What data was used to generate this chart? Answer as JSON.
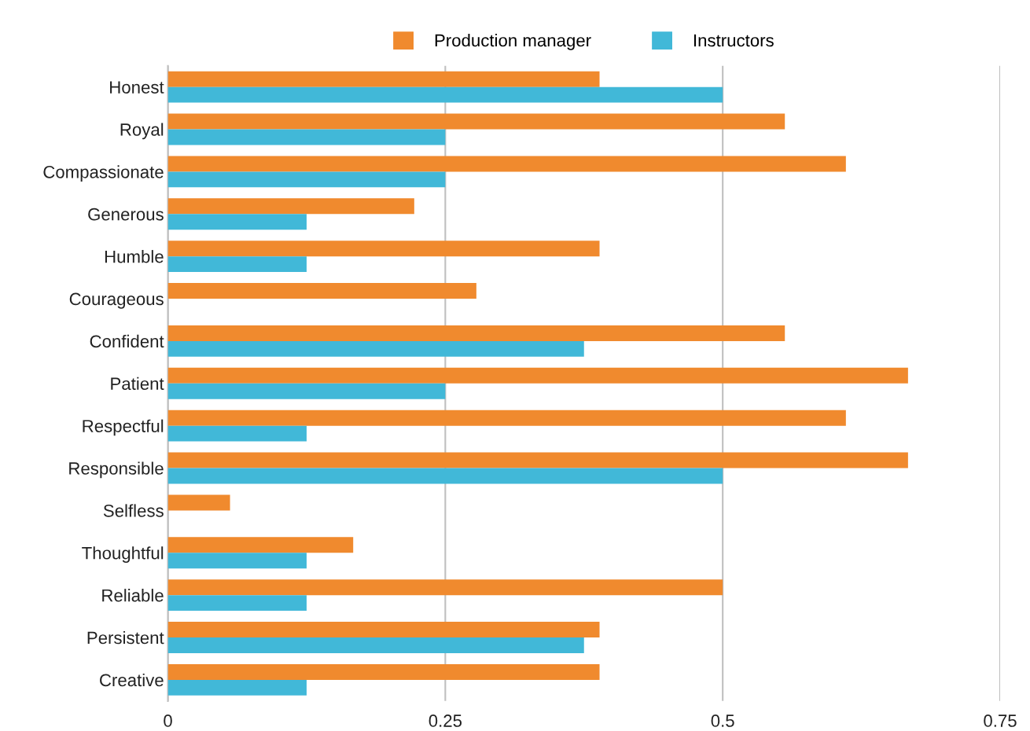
{
  "chart_data": {
    "type": "bar",
    "orientation": "horizontal",
    "categories": [
      "Honest",
      "Royal",
      "Compassionate",
      "Generous",
      "Humble",
      "Courageous",
      "Confident",
      "Patient",
      "Respectful",
      "Responsible",
      "Selfless",
      "Thoughtful",
      "Reliable",
      "Persistent",
      "Creative"
    ],
    "series": [
      {
        "name": "Production manager",
        "color": "#f08a2e",
        "values": [
          0.389,
          0.556,
          0.611,
          0.222,
          0.389,
          0.278,
          0.556,
          0.667,
          0.611,
          0.667,
          0.056,
          0.167,
          0.5,
          0.389,
          0.389
        ]
      },
      {
        "name": "Instructors",
        "color": "#41b8d8",
        "values": [
          0.5,
          0.25,
          0.25,
          0.125,
          0.125,
          0,
          0.375,
          0.25,
          0.125,
          0.5,
          0,
          0.125,
          0.125,
          0.375,
          0.125
        ]
      }
    ],
    "xlim": [
      0,
      0.75
    ],
    "xticks": [
      0,
      0.25,
      0.5,
      0.75
    ],
    "grid": "x",
    "legend": "top"
  }
}
